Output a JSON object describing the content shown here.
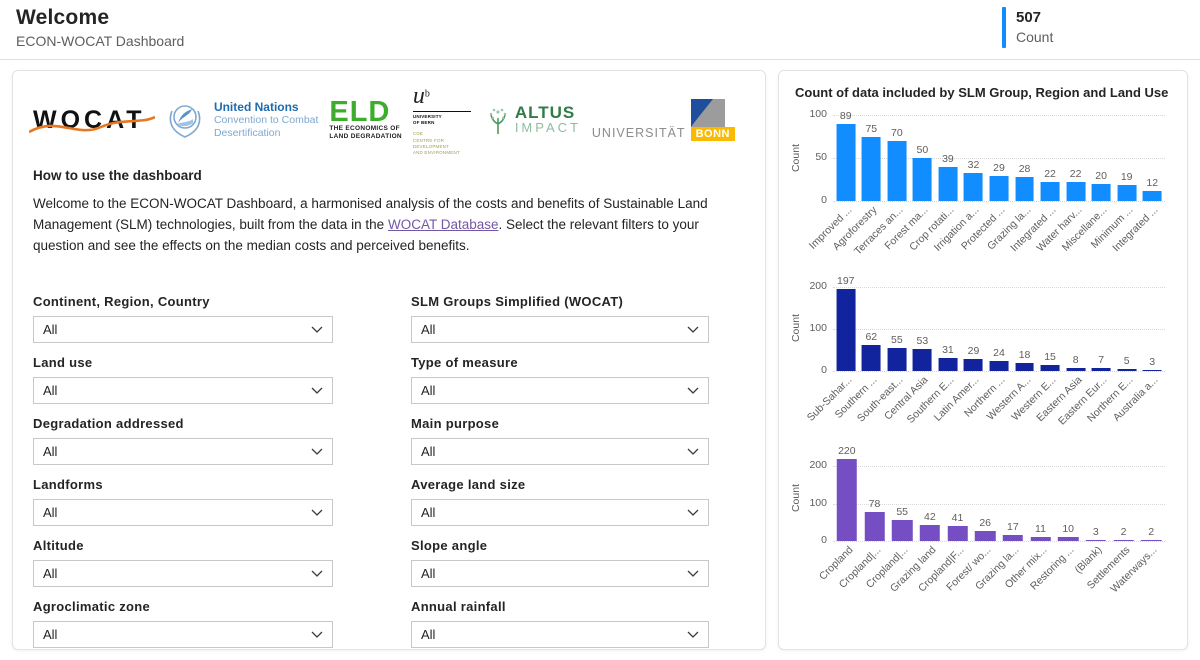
{
  "colors": {
    "accent": "#118DFF",
    "link": "#7357A5"
  },
  "header": {
    "title": "Welcome",
    "subtitle": "ECON-WOCAT Dashboard"
  },
  "count_card": {
    "value": "507",
    "label": "Count",
    "accent_color": "#118DFF"
  },
  "logos": {
    "wocat": "WOCAT",
    "unccd": {
      "line1": "United Nations",
      "line2": "Convention to Combat",
      "line3": "Desertification"
    },
    "eld": {
      "title": "ELD",
      "sub1": "THE ECONOMICS OF",
      "sub2": "LAND DEGRADATION"
    },
    "unibe": {
      "mark": "u",
      "sup": "b",
      "line1": "UNIVERSITY",
      "line2": "OF BERN",
      "cde1": "CDE",
      "cde2": "CENTRE FOR DEVELOPMENT",
      "cde3": "AND ENVIRONMENT"
    },
    "altus": {
      "line1": "ALTUS",
      "line2": "IMPACT"
    },
    "unibonn": {
      "text": "UNIVERSITÄT",
      "box": "BONN"
    }
  },
  "instructions": {
    "heading": "How to use the dashboard",
    "body_before": "Welcome to the ECON-WOCAT Dashboard, a harmonised analysis of the costs and benefits of Sustainable Land Management (SLM) technologies, built from the data in the ",
    "link_text": "WOCAT Database",
    "body_after": ". Select the relevant filters to your question and see the effects on the median costs and perceived benefits."
  },
  "filters": {
    "columns": [
      {
        "items": [
          {
            "label": "Continent, Region, Country",
            "value": "All"
          },
          {
            "label": "Land use",
            "value": "All"
          },
          {
            "label": "Degradation addressed",
            "value": "All"
          },
          {
            "label": "Landforms",
            "value": "All"
          },
          {
            "label": "Altitude",
            "value": "All"
          },
          {
            "label": "Agroclimatic zone",
            "value": "All"
          }
        ]
      },
      {
        "items": [
          {
            "label": "SLM Groups Simplified (WOCAT)",
            "value": "All"
          },
          {
            "label": "Type of measure",
            "value": "All"
          },
          {
            "label": "Main purpose",
            "value": "All"
          },
          {
            "label": "Average land size",
            "value": "All"
          },
          {
            "label": "Slope angle",
            "value": "All"
          },
          {
            "label": "Annual rainfall",
            "value": "All"
          }
        ]
      }
    ]
  },
  "charts_panel": {
    "title": "Count of data included by SLM Group, Region and Land Use"
  },
  "chart_data": [
    {
      "type": "bar",
      "dimension": "SLM Group",
      "ylabel": "Count",
      "yticks": [
        0,
        50,
        100
      ],
      "ylim": [
        0,
        100
      ],
      "grid": true,
      "bar_color": "#118DFF",
      "categories": [
        "Improved ...",
        "Agroforestry",
        "Terraces an...",
        "Forest ma...",
        "Crop rotati...",
        "Irrigation a...",
        "Protected ...",
        "Grazing la...",
        "Integrated ...",
        "Water harv...",
        "Miscellane...",
        "Minimum ...",
        "Integrated ..."
      ],
      "values": [
        89,
        75,
        70,
        50,
        39,
        32,
        29,
        28,
        22,
        22,
        20,
        19,
        12
      ]
    },
    {
      "type": "bar",
      "dimension": "Region",
      "ylabel": "Count",
      "yticks": [
        0,
        100,
        200
      ],
      "ylim": [
        0,
        200
      ],
      "grid": true,
      "bar_color": "#12239E",
      "categories": [
        "Sub-Sahar...",
        "Southern ...",
        "South-east...",
        "Central Asia",
        "Southern E...",
        "Latin Amer...",
        "Northern ...",
        "Western A...",
        "Western E...",
        "Eastern Asia",
        "Eastern Eur...",
        "Northern E...",
        "Australia a..."
      ],
      "values": [
        197,
        62,
        55,
        53,
        31,
        29,
        24,
        18,
        15,
        8,
        7,
        5,
        3
      ]
    },
    {
      "type": "bar",
      "dimension": "Land Use",
      "ylabel": "Count",
      "yticks": [
        0,
        100,
        200
      ],
      "ylim": [
        0,
        200
      ],
      "grid": true,
      "bar_color": "#744EC2",
      "categories": [
        "Cropland",
        "Cropland|...",
        "Cropland|...",
        "Grazing land",
        "Cropland|F...",
        "Forest/ wo...",
        "Grazing la...",
        "Other mix...",
        "Restoring ...",
        "(Blank)",
        "Settlements",
        "Waterways..."
      ],
      "values": [
        220,
        78,
        55,
        42,
        41,
        26,
        17,
        11,
        10,
        3,
        2,
        2
      ]
    }
  ]
}
